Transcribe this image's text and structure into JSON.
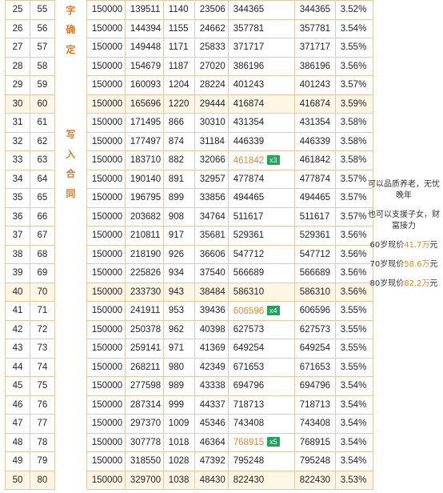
{
  "side_text": {
    "top": [
      "字",
      "确",
      "定"
    ],
    "bottom": [
      "写",
      "入",
      "合",
      "同"
    ]
  },
  "rows": [
    {
      "year": "25",
      "age": "55",
      "premium": "150000",
      "cash": "139511",
      "bonus": "1140",
      "acc": "23506",
      "total": "344365",
      "badge": "",
      "value": "344365",
      "rate": "3.52%"
    },
    {
      "year": "26",
      "age": "56",
      "premium": "150000",
      "cash": "144394",
      "bonus": "1155",
      "acc": "24662",
      "total": "357781",
      "badge": "",
      "value": "357781",
      "rate": "3.54%"
    },
    {
      "year": "27",
      "age": "57",
      "premium": "150000",
      "cash": "149448",
      "bonus": "1171",
      "acc": "25833",
      "total": "371717",
      "badge": "",
      "value": "371717",
      "rate": "3.55%"
    },
    {
      "year": "28",
      "age": "58",
      "premium": "150000",
      "cash": "154679",
      "bonus": "1187",
      "acc": "27020",
      "total": "386196",
      "badge": "",
      "value": "386196",
      "rate": "3.56%"
    },
    {
      "year": "29",
      "age": "59",
      "premium": "150000",
      "cash": "160093",
      "bonus": "1204",
      "acc": "28224",
      "total": "401243",
      "badge": "",
      "value": "401243",
      "rate": "3.57%"
    },
    {
      "year": "30",
      "age": "60",
      "premium": "150000",
      "cash": "165696",
      "bonus": "1220",
      "acc": "29444",
      "total": "416874",
      "badge": "",
      "value": "416874",
      "rate": "3.59%",
      "hl": true
    },
    {
      "year": "31",
      "age": "61",
      "premium": "150000",
      "cash": "171495",
      "bonus": "866",
      "acc": "30310",
      "total": "431354",
      "badge": "",
      "value": "431354",
      "rate": "3.58%"
    },
    {
      "year": "32",
      "age": "62",
      "premium": "150000",
      "cash": "177497",
      "bonus": "874",
      "acc": "31184",
      "total": "446339",
      "badge": "",
      "value": "446339",
      "rate": "3.58%"
    },
    {
      "year": "33",
      "age": "63",
      "premium": "150000",
      "cash": "183710",
      "bonus": "882",
      "acc": "32066",
      "total": "461842",
      "badge": "x3",
      "value": "461842",
      "rate": "3.58%"
    },
    {
      "year": "34",
      "age": "64",
      "premium": "150000",
      "cash": "190140",
      "bonus": "891",
      "acc": "32957",
      "total": "477874",
      "badge": "",
      "value": "477874",
      "rate": "3.57%"
    },
    {
      "year": "35",
      "age": "65",
      "premium": "150000",
      "cash": "196795",
      "bonus": "899",
      "acc": "33856",
      "total": "494465",
      "badge": "",
      "value": "494465",
      "rate": "3.57%"
    },
    {
      "year": "36",
      "age": "66",
      "premium": "150000",
      "cash": "203682",
      "bonus": "908",
      "acc": "34764",
      "total": "511617",
      "badge": "",
      "value": "511617",
      "rate": "3.57%"
    },
    {
      "year": "37",
      "age": "67",
      "premium": "150000",
      "cash": "210811",
      "bonus": "917",
      "acc": "35681",
      "total": "529361",
      "badge": "",
      "value": "529361",
      "rate": "3.56%"
    },
    {
      "year": "38",
      "age": "68",
      "premium": "150000",
      "cash": "218190",
      "bonus": "926",
      "acc": "36606",
      "total": "547712",
      "badge": "",
      "value": "547712",
      "rate": "3.56%"
    },
    {
      "year": "39",
      "age": "69",
      "premium": "150000",
      "cash": "225826",
      "bonus": "934",
      "acc": "37540",
      "total": "566689",
      "badge": "",
      "value": "566689",
      "rate": "3.56%"
    },
    {
      "year": "40",
      "age": "70",
      "premium": "150000",
      "cash": "233730",
      "bonus": "943",
      "acc": "38484",
      "total": "586310",
      "badge": "",
      "value": "586310",
      "rate": "3.56%",
      "hl": true
    },
    {
      "year": "41",
      "age": "71",
      "premium": "150000",
      "cash": "241911",
      "bonus": "953",
      "acc": "39436",
      "total": "606596",
      "badge": "x4",
      "value": "606596",
      "rate": "3.55%"
    },
    {
      "year": "42",
      "age": "72",
      "premium": "150000",
      "cash": "250378",
      "bonus": "962",
      "acc": "40398",
      "total": "627573",
      "badge": "",
      "value": "627573",
      "rate": "3.55%"
    },
    {
      "year": "43",
      "age": "73",
      "premium": "150000",
      "cash": "259141",
      "bonus": "971",
      "acc": "41369",
      "total": "649254",
      "badge": "",
      "value": "649254",
      "rate": "3.55%"
    },
    {
      "year": "44",
      "age": "74",
      "premium": "150000",
      "cash": "268211",
      "bonus": "980",
      "acc": "42349",
      "total": "671653",
      "badge": "",
      "value": "671653",
      "rate": "3.55%"
    },
    {
      "year": "45",
      "age": "75",
      "premium": "150000",
      "cash": "277598",
      "bonus": "989",
      "acc": "43338",
      "total": "694796",
      "badge": "",
      "value": "694796",
      "rate": "3.54%"
    },
    {
      "year": "46",
      "age": "76",
      "premium": "150000",
      "cash": "287314",
      "bonus": "999",
      "acc": "44337",
      "total": "718713",
      "badge": "",
      "value": "718713",
      "rate": "3.54%"
    },
    {
      "year": "47",
      "age": "77",
      "premium": "150000",
      "cash": "297370",
      "bonus": "1009",
      "acc": "45346",
      "total": "743408",
      "badge": "",
      "value": "743408",
      "rate": "3.54%"
    },
    {
      "year": "48",
      "age": "78",
      "premium": "150000",
      "cash": "307778",
      "bonus": "1018",
      "acc": "46364",
      "total": "768915",
      "badge": "x5",
      "value": "768915",
      "rate": "3.54%"
    },
    {
      "year": "49",
      "age": "79",
      "premium": "150000",
      "cash": "318550",
      "bonus": "1028",
      "acc": "47392",
      "total": "795248",
      "badge": "",
      "value": "795248",
      "rate": "3.54%"
    },
    {
      "year": "50",
      "age": "80",
      "premium": "150000",
      "cash": "329700",
      "bonus": "1038",
      "acc": "48430",
      "total": "822430",
      "badge": "",
      "value": "822430",
      "rate": "3.53%",
      "hl": true
    }
  ],
  "note": {
    "line1": "可以品质养老，无忧晚年",
    "line2": "也可以支援子女，财富接力",
    "p60_prefix": "60岁现价",
    "p60_amount": "41.7万",
    "p60_suffix": "元",
    "p70_prefix": "70岁现价",
    "p70_amount": "58.6万",
    "p70_suffix": "元",
    "p80_prefix": "80岁现价",
    "p80_amount": "82.2万",
    "p80_suffix": "元"
  },
  "colors": {
    "accent": "#e58a2e",
    "badge": "#1ea35a",
    "highlight_row": "#fdf6e4",
    "border": "#e6c8a2"
  }
}
